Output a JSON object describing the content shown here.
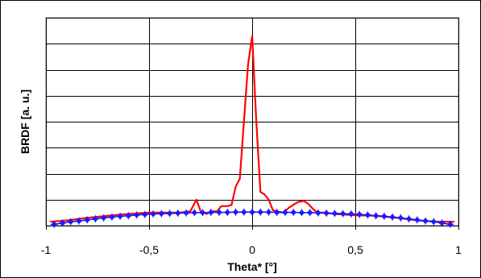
{
  "chart_data": {
    "type": "line",
    "title": "",
    "xlabel": "Theta* [°]",
    "ylabel": "BRDF [a. u.]",
    "xlim": [
      -1,
      1
    ],
    "ylim": [
      0,
      8
    ],
    "x_ticks": [
      -1,
      -0.5,
      0,
      0.5,
      1
    ],
    "x_tick_labels": [
      "-1",
      "-0,5",
      "0",
      "0,5",
      "1"
    ],
    "y_gridlines": [
      1,
      2,
      3,
      4,
      5,
      6,
      7,
      8
    ],
    "grid": true,
    "legend": "none",
    "colors": {
      "measured": "#ff0000",
      "model": "#1a1aff"
    },
    "series": [
      {
        "color": "#ff0000",
        "style": "line",
        "x": [
          -0.98,
          -0.9,
          -0.8,
          -0.7,
          -0.6,
          -0.5,
          -0.4,
          -0.35,
          -0.3,
          -0.27,
          -0.25,
          -0.22,
          -0.2,
          -0.17,
          -0.15,
          -0.12,
          -0.1,
          -0.08,
          -0.06,
          -0.04,
          -0.02,
          0,
          0.02,
          0.04,
          0.06,
          0.08,
          0.1,
          0.12,
          0.15,
          0.18,
          0.2,
          0.22,
          0.25,
          0.27,
          0.3,
          0.32,
          0.35,
          0.4,
          0.5,
          0.6,
          0.7,
          0.8,
          0.9,
          0.98
        ],
        "y": [
          0.15,
          0.2,
          0.3,
          0.38,
          0.45,
          0.5,
          0.5,
          0.5,
          0.55,
          1.0,
          0.55,
          0.45,
          0.55,
          0.55,
          0.75,
          0.75,
          0.8,
          1.5,
          1.8,
          4.0,
          6.2,
          7.3,
          4.0,
          1.3,
          1.2,
          1.0,
          0.6,
          0.55,
          0.5,
          0.7,
          0.8,
          0.9,
          0.95,
          0.85,
          0.6,
          0.5,
          0.5,
          0.45,
          0.4,
          0.38,
          0.3,
          0.2,
          0.15,
          0.15
        ]
      },
      {
        "color": "#1a1aff",
        "style": "line-with-diamond-and-plus-markers",
        "x": [
          -0.96,
          -0.92,
          -0.88,
          -0.84,
          -0.8,
          -0.76,
          -0.72,
          -0.68,
          -0.64,
          -0.6,
          -0.56,
          -0.52,
          -0.48,
          -0.44,
          -0.4,
          -0.36,
          -0.32,
          -0.28,
          -0.24,
          -0.2,
          -0.16,
          -0.12,
          -0.08,
          -0.04,
          0,
          0.04,
          0.08,
          0.12,
          0.16,
          0.2,
          0.24,
          0.28,
          0.32,
          0.36,
          0.4,
          0.44,
          0.48,
          0.52,
          0.56,
          0.6,
          0.64,
          0.68,
          0.72,
          0.76,
          0.8,
          0.84,
          0.88,
          0.92,
          0.96
        ],
        "y": [
          0.05,
          0.1,
          0.15,
          0.18,
          0.22,
          0.26,
          0.3,
          0.33,
          0.36,
          0.38,
          0.41,
          0.43,
          0.45,
          0.46,
          0.47,
          0.48,
          0.49,
          0.5,
          0.5,
          0.51,
          0.51,
          0.51,
          0.52,
          0.52,
          0.52,
          0.52,
          0.52,
          0.51,
          0.51,
          0.51,
          0.5,
          0.5,
          0.49,
          0.48,
          0.47,
          0.46,
          0.45,
          0.43,
          0.41,
          0.38,
          0.36,
          0.33,
          0.3,
          0.26,
          0.22,
          0.18,
          0.15,
          0.1,
          0.05
        ]
      }
    ]
  }
}
